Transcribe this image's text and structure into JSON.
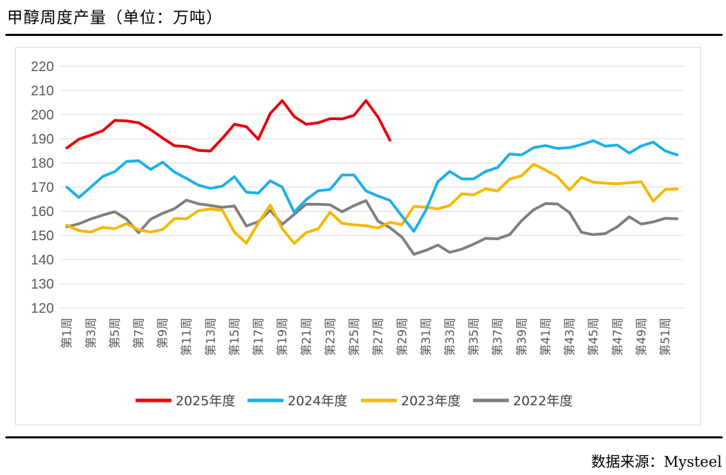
{
  "title": "甲醇周度产量（单位：万吨）",
  "source": "数据来源：Mysteel",
  "chart_data": {
    "type": "line",
    "ylim": [
      120,
      220
    ],
    "y_ticks": [
      220,
      210,
      200,
      190,
      180,
      170,
      160,
      150,
      140,
      130,
      120
    ],
    "grid": true,
    "legend_position": "bottom",
    "x_tick_labels": [
      "第1周",
      "第3周",
      "第5周",
      "第7周",
      "第9周",
      "第11周",
      "第13周",
      "第15周",
      "第17周",
      "第19周",
      "第21周",
      "第23周",
      "第25周",
      "第27周",
      "第29周",
      "第31周",
      "第33周",
      "第35周",
      "第37周",
      "第39周",
      "第41周",
      "第43周",
      "第45周",
      "第47周",
      "第49周",
      "第51周"
    ],
    "weeks": [
      1,
      2,
      3,
      4,
      5,
      6,
      7,
      8,
      9,
      10,
      11,
      12,
      13,
      14,
      15,
      16,
      17,
      18,
      19,
      20,
      21,
      22,
      23,
      24,
      25,
      26,
      27,
      28,
      29,
      30,
      31,
      32,
      33,
      34,
      35,
      36,
      37,
      38,
      39,
      40,
      41,
      42,
      43,
      44,
      45,
      46,
      47,
      48,
      49,
      50,
      51,
      52
    ],
    "series": [
      {
        "name": "2025年度",
        "color": "#e8000b",
        "values": [
          186.2,
          189.8,
          191.5,
          193.3,
          197.6,
          197.4,
          196.6,
          193.8,
          190.3,
          187.1,
          186.8,
          185.2,
          184.9,
          190.2,
          196.0,
          195.0,
          189.8,
          200.5,
          205.8,
          199.2,
          196.0,
          196.6,
          198.3,
          198.2,
          199.7,
          205.8,
          199.0,
          189.4
        ]
      },
      {
        "name": "2024年度",
        "color": "#1cb0ea",
        "values": [
          170.0,
          165.7,
          170.0,
          174.4,
          176.4,
          180.6,
          180.9,
          177.3,
          180.3,
          176.2,
          173.6,
          170.8,
          169.5,
          170.4,
          174.3,
          167.9,
          167.5,
          172.6,
          170.0,
          159.6,
          164.8,
          168.5,
          169.0,
          175.0,
          175.0,
          168.4,
          166.3,
          164.5,
          158.0,
          151.7,
          160.4,
          172.2,
          176.5,
          173.4,
          173.4,
          176.5,
          178.1,
          183.7,
          183.3,
          186.3,
          187.2,
          186.0,
          186.3,
          187.6,
          189.2,
          186.9,
          187.4,
          184.1,
          187.0,
          188.6,
          185.0,
          183.3
        ]
      },
      {
        "name": "2023年度",
        "color": "#f5b800",
        "values": [
          154.2,
          152.0,
          151.4,
          153.3,
          152.8,
          154.9,
          152.3,
          151.4,
          152.4,
          157.0,
          156.9,
          160.2,
          161.0,
          160.4,
          151.4,
          146.8,
          155.2,
          162.6,
          152.8,
          146.7,
          151.2,
          152.7,
          159.6,
          155.0,
          154.4,
          154.0,
          153.1,
          155.4,
          154.5,
          162.0,
          161.7,
          161.0,
          162.4,
          167.2,
          166.8,
          169.3,
          168.4,
          173.3,
          174.7,
          179.4,
          177.1,
          174.3,
          168.8,
          174.1,
          172.0,
          171.6,
          171.4,
          171.8,
          172.2,
          164.2,
          169.0,
          169.2
        ]
      },
      {
        "name": "2022年度",
        "color": "#7f7f7f",
        "values": [
          153.6,
          154.8,
          156.8,
          158.4,
          159.8,
          156.7,
          151.1,
          156.7,
          159.1,
          161.1,
          164.6,
          163.1,
          162.4,
          161.6,
          162.2,
          153.9,
          155.7,
          160.4,
          154.6,
          158.7,
          162.9,
          162.9,
          162.7,
          159.8,
          162.3,
          164.4,
          155.9,
          153.2,
          149.3,
          142.2,
          143.8,
          146.0,
          143.0,
          144.3,
          146.4,
          148.8,
          148.6,
          150.3,
          156.1,
          160.6,
          163.2,
          163.0,
          159.5,
          151.3,
          150.3,
          150.8,
          153.6,
          157.7,
          154.7,
          155.6,
          157.1,
          156.9
        ]
      }
    ]
  }
}
